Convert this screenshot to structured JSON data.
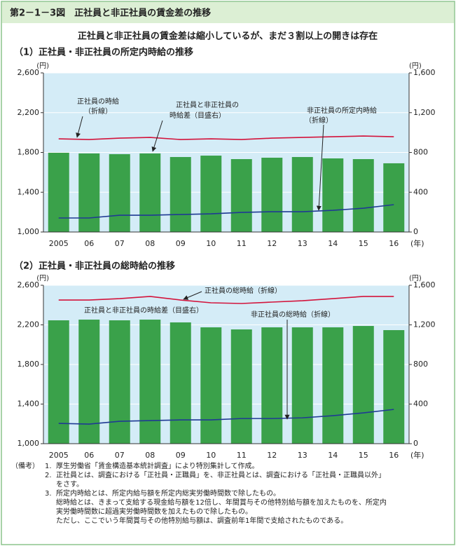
{
  "header": {
    "title": "第2－1－3図　正社員と非正社員の賃金差の推移",
    "headline": "正社員と非正社員の賃金差は縮小しているが、まだ３割以上の開きは存在"
  },
  "chart_data": [
    {
      "type": "combo",
      "title": "（1）正社員・非正社員の所定内時給の推移",
      "categories": [
        "2005",
        "06",
        "07",
        "08",
        "09",
        "10",
        "11",
        "12",
        "13",
        "14",
        "15",
        "16"
      ],
      "x_unit": "(年)",
      "y_unit": "(円)",
      "y2_unit": "(円)",
      "grid": true,
      "ylim": [
        1000,
        2600
      ],
      "yticks": [
        {
          "value": 1000,
          "label": "1,000"
        },
        {
          "value": 1400,
          "label": "1,400"
        },
        {
          "value": 1800,
          "label": "1,800"
        },
        {
          "value": 2200,
          "label": "2,200"
        },
        {
          "value": 2600,
          "label": "2,600"
        }
      ],
      "y2lim": [
        0,
        1600
      ],
      "y2ticks": [
        0,
        400,
        800,
        {
          "value": 1200,
          "label": "1,200"
        },
        {
          "value": 1600,
          "label": "1,600"
        }
      ],
      "series": [
        {
          "label_lines": [
            "正社員の時給",
            "（折線）"
          ],
          "type": "line",
          "color": "#d3143c",
          "values": [
            1937,
            1930,
            1944,
            1951,
            1930,
            1937,
            1930,
            1944,
            1951,
            1958,
            1965,
            1958
          ]
        },
        {
          "label_lines": [
            "非正社員の所定内時給",
            "（折線）"
          ],
          "type": "line",
          "color": "#1f3a93",
          "values": [
            1141,
            1141,
            1169,
            1169,
            1176,
            1183,
            1197,
            1204,
            1204,
            1218,
            1239,
            1275
          ]
        },
        {
          "label_lines": [
            "正社員と非正社員の",
            "時給差（目盛右）"
          ],
          "type": "bar",
          "axis": "y2",
          "color": "#3aa14a",
          "values": [
            797,
            790,
            783,
            790,
            754,
            768,
            733,
            747,
            754,
            740,
            733,
            691
          ]
        }
      ]
    },
    {
      "type": "combo",
      "title": "（2）正社員・非正社員の総時給の推移",
      "categories": [
        "2005",
        "06",
        "07",
        "08",
        "09",
        "10",
        "11",
        "12",
        "13",
        "14",
        "15",
        "16"
      ],
      "x_unit": "(年)",
      "y_unit": "(円)",
      "y2_unit": "(円)",
      "grid": true,
      "ylim": [
        1000,
        2600
      ],
      "yticks": [
        {
          "value": 1000,
          "label": "1,000"
        },
        {
          "value": 1400,
          "label": "1,400"
        },
        {
          "value": 1800,
          "label": "1,800"
        },
        {
          "value": 2200,
          "label": "2,200"
        },
        {
          "value": 2600,
          "label": "2,600"
        }
      ],
      "y2lim": [
        0,
        1600
      ],
      "y2ticks": [
        0,
        400,
        800,
        {
          "value": 1200,
          "label": "1,200"
        },
        {
          "value": 1600,
          "label": "1,600"
        }
      ],
      "series": [
        {
          "label_lines": [
            "正社員の総時給（折線）"
          ],
          "type": "line",
          "color": "#d3143c",
          "values": [
            2451,
            2451,
            2465,
            2487,
            2451,
            2423,
            2416,
            2430,
            2444,
            2465,
            2487,
            2487
          ]
        },
        {
          "label_lines": [
            "非正社員の総時給（折線）"
          ],
          "type": "line",
          "color": "#1f3a93",
          "values": [
            1205,
            1198,
            1226,
            1233,
            1240,
            1240,
            1254,
            1254,
            1261,
            1283,
            1311,
            1346
          ]
        },
        {
          "label_lines": [
            "正社員と非正社員の時給差（目盛右）"
          ],
          "type": "bar",
          "axis": "y2",
          "color": "#3aa14a",
          "values": [
            1246,
            1253,
            1246,
            1253,
            1225,
            1175,
            1154,
            1175,
            1175,
            1175,
            1189,
            1147
          ]
        }
      ]
    }
  ],
  "notes": {
    "label": "（備考）",
    "items": [
      {
        "num": "1.",
        "lines": [
          "厚生労働省「賃金構造基本統計調査」により特別集計して作成。"
        ]
      },
      {
        "num": "2.",
        "lines": [
          "正社員とは、調査における「正社員・正職員」を、非正社員とは、調査における「正社員・正職員以外」",
          "をさす。"
        ]
      },
      {
        "num": "3.",
        "lines": [
          "所定内時給とは、所定内給与額を所定内総実労働時間数で除したもの。",
          "総時給とは、きまって支給する現金給与額を12倍し、年間賞与その他特別給与額を加えたものを、所定内",
          "実労働時間数に超過実労働時間数を加えたもので除したもの。",
          "ただし、ここでいう年間賞与その他特別給与額は、調査前年1年間で支給されたものである。"
        ]
      }
    ]
  }
}
